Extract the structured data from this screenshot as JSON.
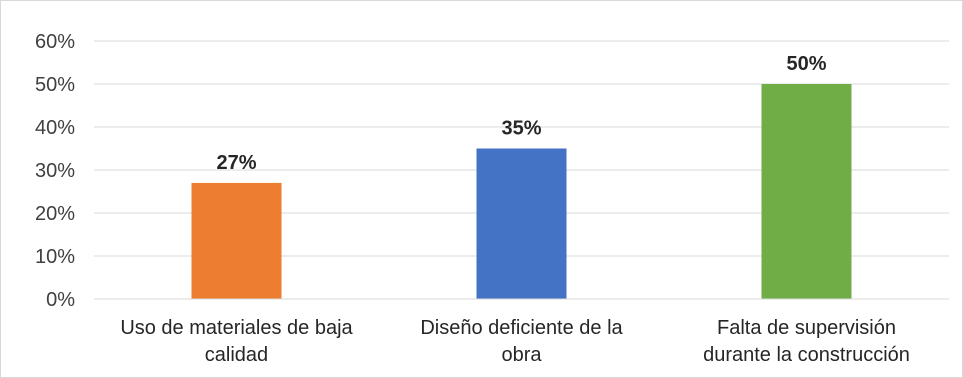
{
  "chart_data": {
    "type": "bar",
    "categories": [
      [
        "Uso de materiales de baja",
        "calidad"
      ],
      [
        "Diseño deficiente de la",
        "obra"
      ],
      [
        "Falta de supervisión",
        "durante la construcción"
      ]
    ],
    "values": [
      27,
      35,
      50
    ],
    "data_labels": [
      "27%",
      "35%",
      "50%"
    ],
    "colors": [
      "#ed7d31",
      "#4472c4",
      "#70ad47"
    ],
    "ylim": [
      0,
      60
    ],
    "y_ticks": [
      {
        "value": 0,
        "label": "0%"
      },
      {
        "value": 10,
        "label": "10%"
      },
      {
        "value": 20,
        "label": "20%"
      },
      {
        "value": 30,
        "label": "30%"
      },
      {
        "value": 40,
        "label": "40%"
      },
      {
        "value": 50,
        "label": "50%"
      },
      {
        "value": 60,
        "label": "60%"
      }
    ],
    "grid": true,
    "gridline_color": "#d9d9d9"
  }
}
